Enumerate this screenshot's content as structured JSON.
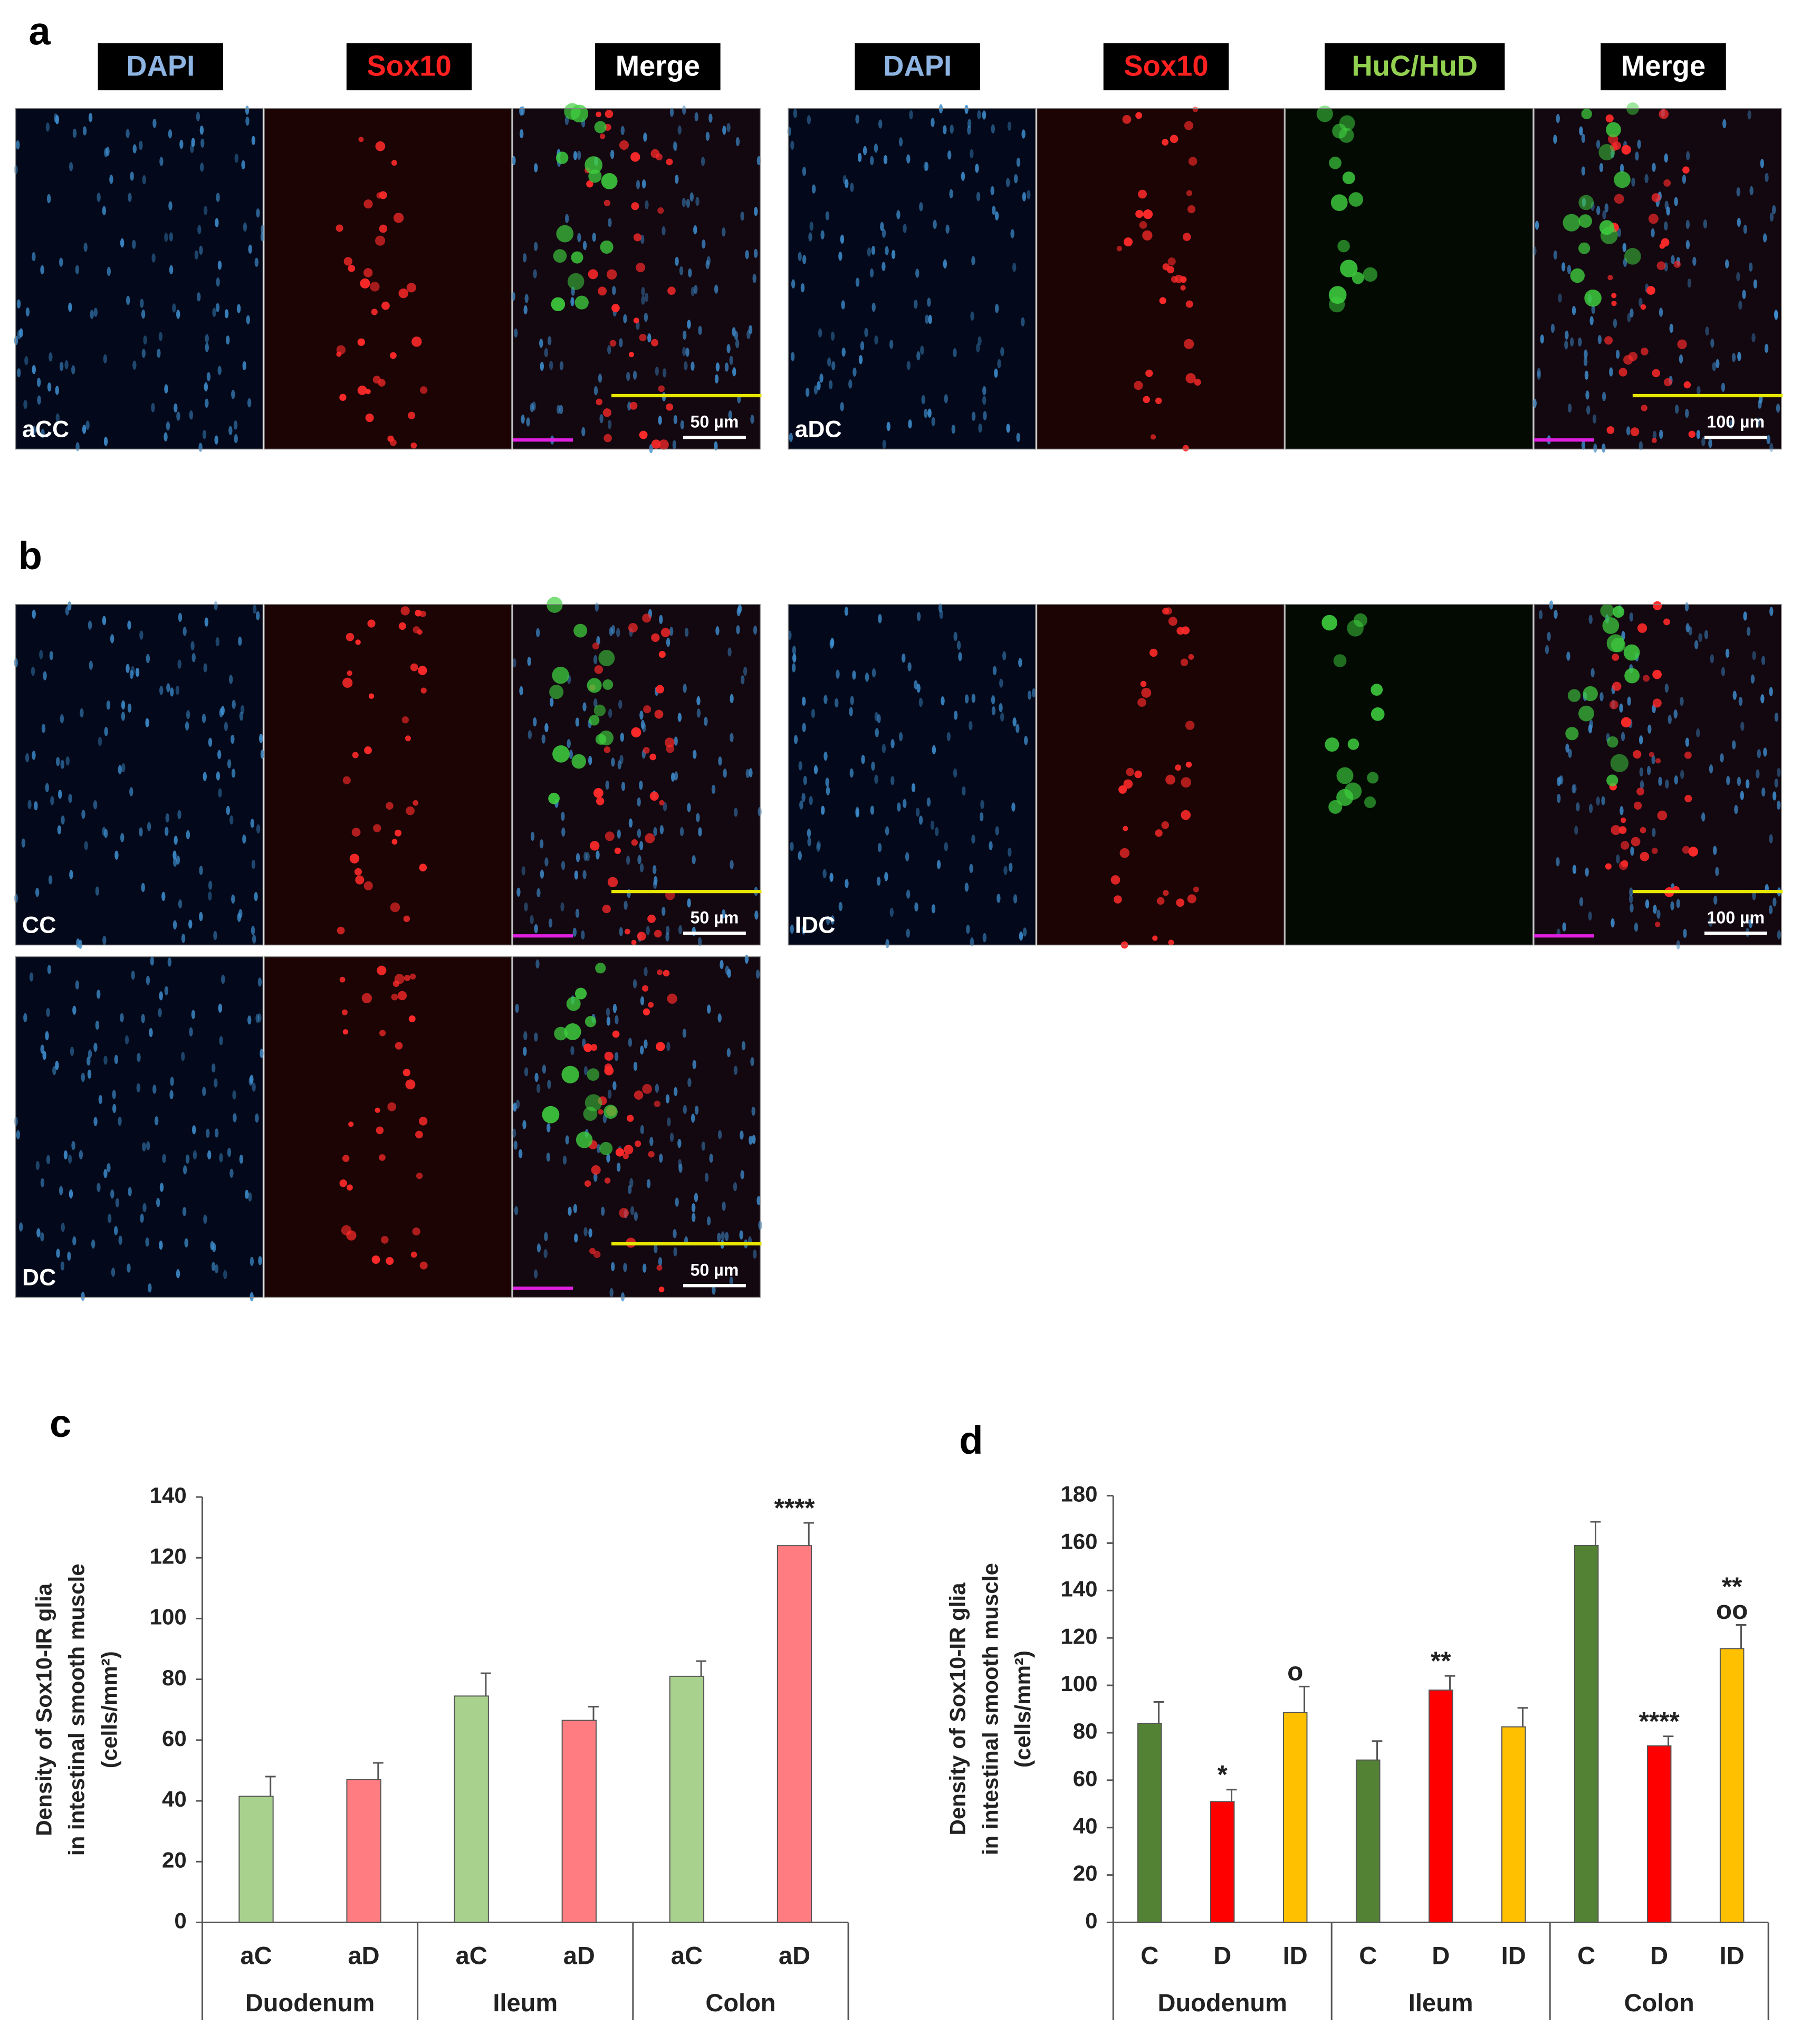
{
  "panels": {
    "a": {
      "label": "a",
      "left": {
        "headers": [
          "DAPI",
          "Sox10",
          "Merge"
        ],
        "sample": "aCC",
        "scale": "50 µm"
      },
      "right": {
        "headers": [
          "DAPI",
          "Sox10",
          "HuC/HuD",
          "Merge"
        ],
        "sample": "aDC",
        "scale": "100 µm"
      }
    },
    "b": {
      "label": "b",
      "samples": [
        {
          "sample": "CC",
          "scale": "50 µm"
        },
        {
          "sample": "IDC",
          "scale": "100 µm"
        },
        {
          "sample": "DC",
          "scale": "50 µm"
        }
      ]
    }
  },
  "chart_data": [
    {
      "type": "bar",
      "label": "c",
      "ylabel": [
        "Density of Sox10-IR glia",
        "in intestinal smooth muscle",
        "(cells/mm²)"
      ],
      "groups": [
        "Duodenum",
        "Ileum",
        "Colon"
      ],
      "categories": [
        "aC",
        "aD",
        "aC",
        "aD",
        "aC",
        "aD"
      ],
      "values": [
        41.5,
        47,
        74.5,
        66.5,
        81,
        124
      ],
      "errors": [
        6.5,
        5.5,
        7.5,
        4.5,
        5,
        7.5
      ],
      "colors": [
        "#a9d18e",
        "#ff7c80",
        "#a9d18e",
        "#ff7c80",
        "#a9d18e",
        "#ff7c80"
      ],
      "annotations": [
        null,
        null,
        null,
        null,
        null,
        [
          "****"
        ]
      ],
      "ylim": [
        0,
        140
      ],
      "yticks": [
        0,
        20,
        40,
        60,
        80,
        100,
        120,
        140
      ]
    },
    {
      "type": "bar",
      "label": "d",
      "ylabel": [
        "Density of Sox10-IR glia",
        "in intestinal smooth muscle",
        "(cells/mm²)"
      ],
      "groups": [
        "Duodenum",
        "Ileum",
        "Colon"
      ],
      "categories": [
        "C",
        "D",
        "ID",
        "C",
        "D",
        "ID",
        "C",
        "D",
        "ID"
      ],
      "values": [
        84,
        51,
        88.5,
        68.5,
        98,
        82.5,
        159,
        74.5,
        115.5
      ],
      "errors": [
        9,
        5,
        11,
        8,
        6,
        8,
        10,
        4,
        10
      ],
      "colors": [
        "#548235",
        "#ff0000",
        "#ffc000",
        "#548235",
        "#ff0000",
        "#ffc000",
        "#548235",
        "#ff0000",
        "#ffc000"
      ],
      "annotations": [
        null,
        [
          "*"
        ],
        [
          "o"
        ],
        null,
        [
          "**"
        ],
        null,
        null,
        [
          "****"
        ],
        [
          "**",
          "oo"
        ]
      ],
      "ylim": [
        0,
        180
      ],
      "yticks": [
        0,
        20,
        40,
        60,
        80,
        100,
        120,
        140,
        160,
        180
      ]
    }
  ]
}
